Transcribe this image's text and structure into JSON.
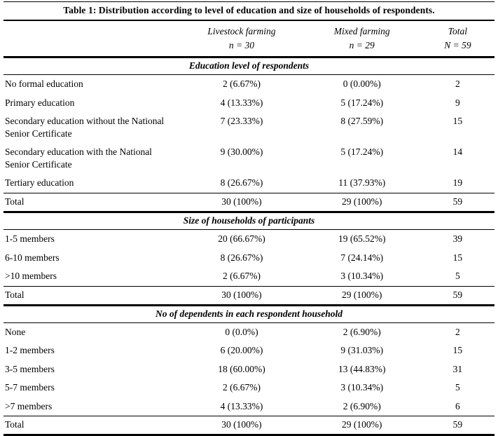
{
  "caption": "Table 1: Distribution according to level of education and size of households of respondents.",
  "columns": [
    {
      "label": "",
      "sub": ""
    },
    {
      "label": "Livestock farming",
      "sub": "n = 30"
    },
    {
      "label": "Mixed farming",
      "sub": "n = 29"
    },
    {
      "label": "Total",
      "sub": "N = 59"
    }
  ],
  "sections": [
    {
      "title": "Education level of respondents",
      "rows": [
        {
          "label": "No formal education",
          "values": [
            "2 (6.67%)",
            "0 (0.00%)",
            "2"
          ]
        },
        {
          "label": "Primary education",
          "values": [
            "4 (13.33%)",
            "5 (17.24%)",
            "9"
          ]
        },
        {
          "label": "Secondary education without the National Senior Certificate",
          "values": [
            "7 (23.33%)",
            "8 (27.59%)",
            "15"
          ]
        },
        {
          "label": "Secondary education with the National Senior Certificate",
          "values": [
            "9 (30.00%)",
            "5 (17.24%)",
            "14"
          ]
        },
        {
          "label": "Tertiary education",
          "values": [
            "8 (26.67%)",
            "11 (37.93%)",
            "19"
          ]
        }
      ],
      "total": {
        "label": "Total",
        "values": [
          "30 (100%)",
          "29 (100%)",
          "59"
        ]
      }
    },
    {
      "title": "Size of households of participants",
      "rows": [
        {
          "label": "1-5 members",
          "values": [
            "20 (66.67%)",
            "19 (65.52%)",
            "39"
          ]
        },
        {
          "label": "6-10 members",
          "values": [
            "8 (26.67%)",
            "7 (24.14%)",
            "15"
          ]
        },
        {
          "label": ">10 members",
          "values": [
            "2 (6.67%)",
            "3 (10.34%)",
            "5"
          ]
        }
      ],
      "total": {
        "label": "Total",
        "values": [
          "30 (100%)",
          "29 (100%)",
          "59"
        ]
      }
    },
    {
      "title": "No of dependents in each respondent household",
      "rows": [
        {
          "label": "None",
          "values": [
            "0 (0.0%)",
            "2 (6.90%)",
            "2"
          ]
        },
        {
          "label": "1-2 members",
          "values": [
            "6 (20.00%)",
            "9 (31.03%)",
            "15"
          ]
        },
        {
          "label": "3-5 members",
          "values": [
            "18 (60.00%)",
            "13 (44.83%)",
            "31"
          ]
        },
        {
          "label": "5-7 members",
          "values": [
            "2 (6.67%)",
            "3 (10.34%)",
            "5"
          ]
        },
        {
          "label": ">7 members",
          "values": [
            "4 (13.33%)",
            "2 (6.90%)",
            "6"
          ]
        }
      ],
      "total": {
        "label": "Total",
        "values": [
          "30 (100%)",
          "29 (100%)",
          "59"
        ]
      }
    }
  ]
}
